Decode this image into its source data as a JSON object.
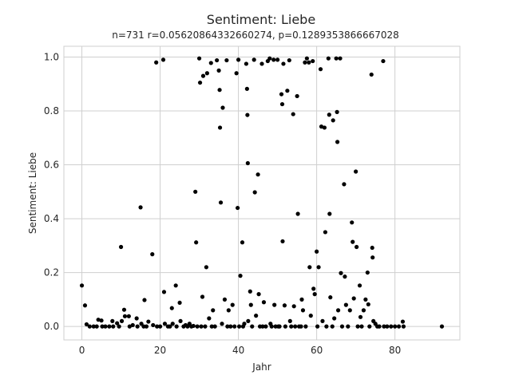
{
  "chart_data": {
    "type": "scatter",
    "title": "Sentiment: Liebe",
    "subtitle": "n=731 r=0.05620864332660274, p=0.1289353866667028",
    "xlabel": "Jahr",
    "ylabel": "Sentiment: Liebe",
    "xlim": [
      -4.6,
      96.6
    ],
    "ylim": [
      -0.05,
      1.04
    ],
    "x_ticks": [
      0,
      20,
      40,
      60,
      80
    ],
    "x_tick_labels": [
      "0",
      "20",
      "40",
      "60",
      "80"
    ],
    "y_ticks": [
      0.0,
      0.2,
      0.4,
      0.6,
      0.8,
      1.0
    ],
    "y_tick_labels": [
      "0.0",
      "0.2",
      "0.4",
      "0.6",
      "0.8",
      "1.0"
    ],
    "grid": true,
    "marker_color": "#000000",
    "points": [
      [
        0,
        0.152
      ],
      [
        0.8,
        0.078
      ],
      [
        1.2,
        0.008
      ],
      [
        2,
        0.0
      ],
      [
        3,
        0.0
      ],
      [
        3.8,
        0.0
      ],
      [
        4.2,
        0.025
      ],
      [
        5,
        0.022
      ],
      [
        5.2,
        0.0
      ],
      [
        6,
        0.0
      ],
      [
        7,
        0.0
      ],
      [
        7.8,
        0.02
      ],
      [
        8,
        0.0
      ],
      [
        9,
        0.012
      ],
      [
        9.5,
        0.0
      ],
      [
        10,
        0.295
      ],
      [
        10.2,
        0.02
      ],
      [
        10.8,
        0.062
      ],
      [
        11,
        0.038
      ],
      [
        12,
        0.038
      ],
      [
        12.2,
        0.0
      ],
      [
        13,
        0.005
      ],
      [
        14,
        0.03
      ],
      [
        14.2,
        0.0
      ],
      [
        15,
        0.442
      ],
      [
        15.2,
        0.01
      ],
      [
        15.8,
        0.0
      ],
      [
        16,
        0.098
      ],
      [
        16.5,
        0.0
      ],
      [
        17,
        0.018
      ],
      [
        18,
        0.268
      ],
      [
        18.2,
        0.005
      ],
      [
        19,
        0.98
      ],
      [
        19.2,
        0.0
      ],
      [
        20,
        0.0
      ],
      [
        20.8,
        0.99
      ],
      [
        21,
        0.128
      ],
      [
        21.2,
        0.01
      ],
      [
        22,
        0.0
      ],
      [
        22.5,
        0.0
      ],
      [
        23,
        0.068
      ],
      [
        23.2,
        0.01
      ],
      [
        24,
        0.152
      ],
      [
        24.2,
        0.0
      ],
      [
        25,
        0.088
      ],
      [
        25.2,
        0.02
      ],
      [
        26,
        0.0
      ],
      [
        26.5,
        0.005
      ],
      [
        27,
        0.0
      ],
      [
        27.5,
        0.01
      ],
      [
        28,
        0.0
      ],
      [
        28.5,
        0.002
      ],
      [
        29,
        0.5
      ],
      [
        29.2,
        0.312
      ],
      [
        29.5,
        0.0
      ],
      [
        30,
        0.995
      ],
      [
        30.2,
        0.905
      ],
      [
        30.5,
        0.0
      ],
      [
        30.8,
        0.11
      ],
      [
        31,
        0.93
      ],
      [
        31.5,
        0.0
      ],
      [
        31.8,
        0.22
      ],
      [
        32,
        0.94
      ],
      [
        32.5,
        0.03
      ],
      [
        33,
        0.978
      ],
      [
        33.2,
        0.0
      ],
      [
        33.5,
        0.06
      ],
      [
        34,
        0.0
      ],
      [
        34.5,
        0.988
      ],
      [
        35,
        0.95
      ],
      [
        35.2,
        0.878
      ],
      [
        35.3,
        0.738
      ],
      [
        35.5,
        0.46
      ],
      [
        35.8,
        0.01
      ],
      [
        36,
        0.812
      ],
      [
        36.5,
        0.1
      ],
      [
        37,
        0.988
      ],
      [
        37.2,
        0.0
      ],
      [
        37.5,
        0.06
      ],
      [
        38,
        0.0
      ],
      [
        38.5,
        0.08
      ],
      [
        39,
        0.0
      ],
      [
        39.5,
        0.94
      ],
      [
        39.8,
        0.44
      ],
      [
        40,
        0.99
      ],
      [
        40.2,
        0.0
      ],
      [
        40.5,
        0.188
      ],
      [
        41,
        0.312
      ],
      [
        41.2,
        0.0
      ],
      [
        41.5,
        0.01
      ],
      [
        42,
        0.975
      ],
      [
        42.2,
        0.882
      ],
      [
        42.3,
        0.785
      ],
      [
        42.4,
        0.606
      ],
      [
        42.5,
        0.02
      ],
      [
        43,
        0.13
      ],
      [
        43.2,
        0.08
      ],
      [
        43.5,
        0.0
      ],
      [
        44,
        0.99
      ],
      [
        44.2,
        0.498
      ],
      [
        44.5,
        0.04
      ],
      [
        45,
        0.564
      ],
      [
        45.2,
        0.12
      ],
      [
        45.5,
        0.0
      ],
      [
        46,
        0.975
      ],
      [
        46.2,
        0.0
      ],
      [
        46.5,
        0.09
      ],
      [
        47,
        0.0
      ],
      [
        47.5,
        0.985
      ],
      [
        48,
        0.995
      ],
      [
        48.2,
        0.01
      ],
      [
        48.5,
        0.0
      ],
      [
        49,
        0.99
      ],
      [
        49.2,
        0.08
      ],
      [
        49.5,
        0.0
      ],
      [
        50,
        0.99
      ],
      [
        50.2,
        0.0
      ],
      [
        50.5,
        0.0
      ],
      [
        51,
        0.862
      ],
      [
        51.2,
        0.825
      ],
      [
        51.3,
        0.316
      ],
      [
        51.5,
        0.975
      ],
      [
        51.8,
        0.078
      ],
      [
        52,
        0.0
      ],
      [
        52.5,
        0.875
      ],
      [
        53,
        0.988
      ],
      [
        53.2,
        0.02
      ],
      [
        53.5,
        0.0
      ],
      [
        54,
        0.788
      ],
      [
        54.2,
        0.075
      ],
      [
        54.5,
        0.0
      ],
      [
        55,
        0.855
      ],
      [
        55.2,
        0.418
      ],
      [
        55.5,
        0.0
      ],
      [
        56,
        0.0
      ],
      [
        56.2,
        0.1
      ],
      [
        56.5,
        0.06
      ],
      [
        57,
        0.98
      ],
      [
        57.2,
        0.0
      ],
      [
        57.5,
        0.995
      ],
      [
        58,
        0.98
      ],
      [
        58.2,
        0.22
      ],
      [
        58.5,
        0.04
      ],
      [
        59,
        0.985
      ],
      [
        59.2,
        0.14
      ],
      [
        59.5,
        0.12
      ],
      [
        60,
        0.278
      ],
      [
        60.2,
        0.0
      ],
      [
        60.5,
        0.22
      ],
      [
        61,
        0.955
      ],
      [
        61.2,
        0.742
      ],
      [
        61.5,
        0.02
      ],
      [
        62,
        0.738
      ],
      [
        62.2,
        0.35
      ],
      [
        62.5,
        0.0
      ],
      [
        63,
        0.995
      ],
      [
        63.2,
        0.786
      ],
      [
        63.3,
        0.418
      ],
      [
        63.5,
        0.108
      ],
      [
        64,
        0.0
      ],
      [
        64.2,
        0.765
      ],
      [
        64.5,
        0.03
      ],
      [
        65,
        0.995
      ],
      [
        65.2,
        0.796
      ],
      [
        65.3,
        0.685
      ],
      [
        65.5,
        0.06
      ],
      [
        66,
        0.995
      ],
      [
        66.2,
        0.198
      ],
      [
        66.5,
        0.0
      ],
      [
        67,
        0.528
      ],
      [
        67.2,
        0.185
      ],
      [
        67.5,
        0.08
      ],
      [
        68,
        0.0
      ],
      [
        68.5,
        0.06
      ],
      [
        69,
        0.386
      ],
      [
        69.2,
        0.314
      ],
      [
        69.5,
        0.104
      ],
      [
        70,
        0.575
      ],
      [
        70.2,
        0.295
      ],
      [
        70.5,
        0.0
      ],
      [
        71,
        0.152
      ],
      [
        71.2,
        0.035
      ],
      [
        71.5,
        0.0
      ],
      [
        72,
        0.06
      ],
      [
        72.5,
        0.1
      ],
      [
        73,
        0.2
      ],
      [
        73.2,
        0.082
      ],
      [
        73.5,
        0.0
      ],
      [
        74,
        0.935
      ],
      [
        74.2,
        0.292
      ],
      [
        74.3,
        0.256
      ],
      [
        74.5,
        0.02
      ],
      [
        75,
        0.01
      ],
      [
        75.5,
        0.0
      ],
      [
        76,
        0.0
      ],
      [
        77,
        0.985
      ],
      [
        77.2,
        0.0
      ],
      [
        78,
        0.0
      ],
      [
        79,
        0.0
      ],
      [
        80,
        0.0
      ],
      [
        81,
        0.0
      ],
      [
        82,
        0.018
      ],
      [
        82.2,
        0.0
      ],
      [
        92,
        0.0
      ]
    ]
  }
}
